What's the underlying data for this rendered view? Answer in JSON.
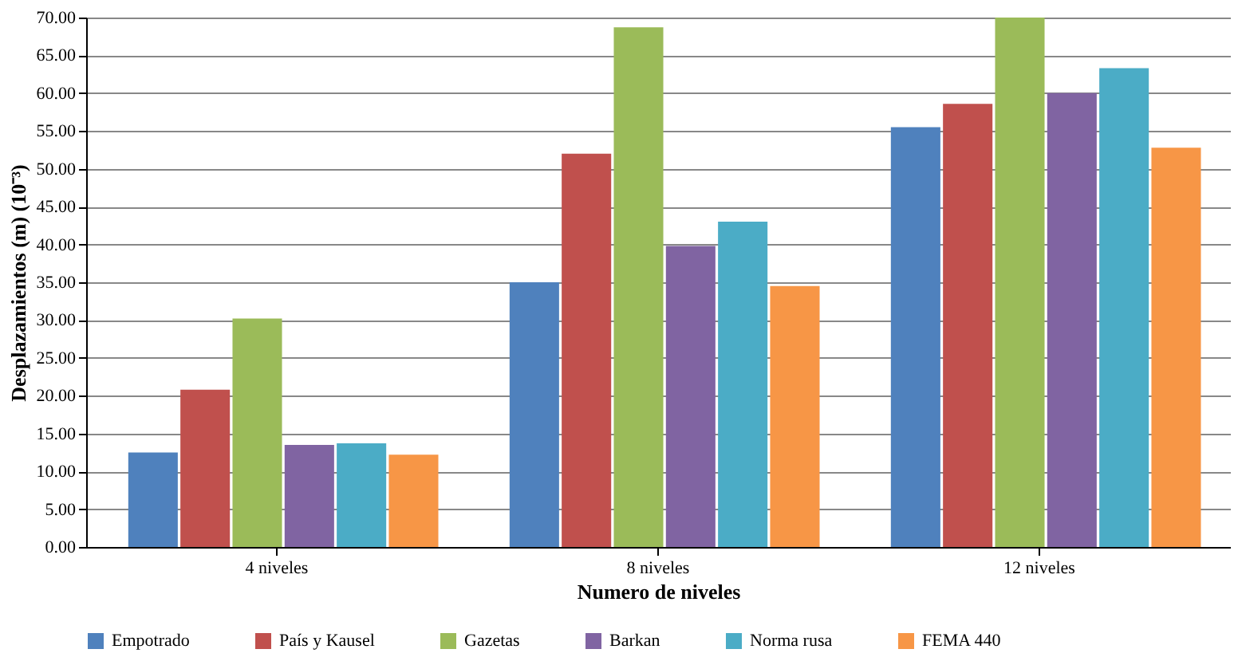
{
  "chart_data": {
    "type": "bar",
    "xlabel": "Numero de niveles",
    "ylabel": "Desplazamientos (m) (10⁻³)",
    "categories": [
      "4 niveles",
      "8 niveles",
      "12 niveles"
    ],
    "series": [
      {
        "name": "Empotrado",
        "color": "#4f81bd",
        "values": [
          12.5,
          35.0,
          55.5
        ]
      },
      {
        "name": "País y Kausel",
        "color": "#c0504d",
        "values": [
          20.8,
          52.0,
          58.6
        ]
      },
      {
        "name": "Gazetas",
        "color": "#9bbb59",
        "values": [
          30.2,
          68.7,
          70.0
        ]
      },
      {
        "name": "Barkan",
        "color": "#8064a2",
        "values": [
          13.5,
          39.8,
          60.0
        ]
      },
      {
        "name": "Norma rusa",
        "color": "#4bacc6",
        "values": [
          13.7,
          43.0,
          63.3
        ]
      },
      {
        "name": "FEMA 440",
        "color": "#f79646",
        "values": [
          12.2,
          34.5,
          52.8
        ]
      }
    ],
    "ylim": [
      0,
      70
    ],
    "yticks": [
      {
        "value": 0,
        "label": "0.00"
      },
      {
        "value": 5,
        "label": "5.00"
      },
      {
        "value": 10,
        "label": "10.00"
      },
      {
        "value": 15,
        "label": "15.00"
      },
      {
        "value": 20,
        "label": "20.00"
      },
      {
        "value": 25,
        "label": "25.00"
      },
      {
        "value": 30,
        "label": "30.00"
      },
      {
        "value": 35,
        "label": "35.00"
      },
      {
        "value": 40,
        "label": "40.00"
      },
      {
        "value": 45,
        "label": "45.00"
      },
      {
        "value": 50,
        "label": "50.00"
      },
      {
        "value": 55,
        "label": "55.00"
      },
      {
        "value": 60,
        "label": "60.00"
      },
      {
        "value": 65,
        "label": "65.00"
      },
      {
        "value": 70,
        "label": "70.00"
      }
    ],
    "grid": "y",
    "legend": "bottom"
  }
}
